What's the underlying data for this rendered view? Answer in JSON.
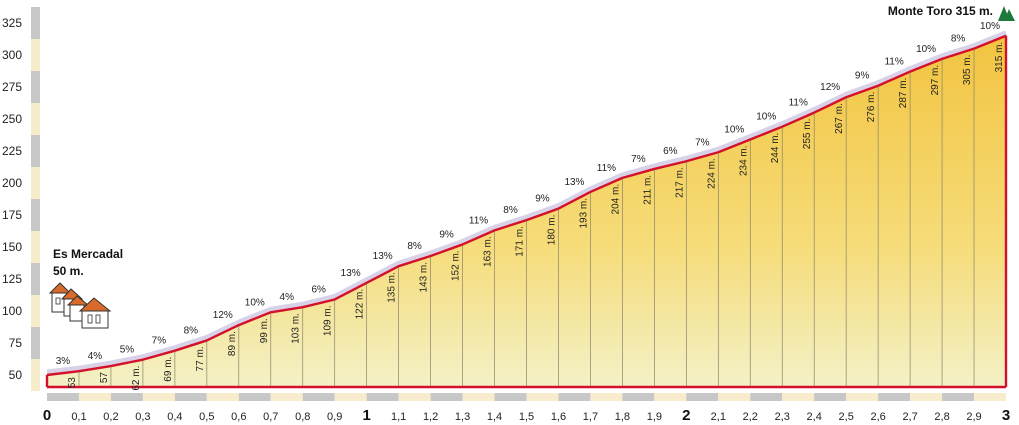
{
  "chart_data": {
    "type": "area",
    "y_ticks": [
      "50",
      "75",
      "100",
      "125",
      "150",
      "175",
      "200",
      "225",
      "250",
      "275",
      "300",
      "325"
    ],
    "x_ticks": [
      "0",
      "0,1",
      "0,2",
      "0,3",
      "0,4",
      "0,5",
      "0,6",
      "0,7",
      "0,8",
      "0,9",
      "1",
      "1,1",
      "1,2",
      "1,3",
      "1,4",
      "1,5",
      "1,6",
      "1,7",
      "1,8",
      "1,9",
      "2",
      "2,1",
      "2,2",
      "2,3",
      "2,4",
      "2,5",
      "2,6",
      "2,7",
      "2,8",
      "2,9",
      "3"
    ],
    "x_major": [
      "0",
      "1",
      "2",
      "3"
    ],
    "xlim": [
      0,
      3
    ],
    "ylim": [
      40,
      325
    ],
    "x": [
      0,
      0.1,
      0.2,
      0.3,
      0.4,
      0.5,
      0.6,
      0.7,
      0.8,
      0.9,
      1.0,
      1.1,
      1.2,
      1.3,
      1.4,
      1.5,
      1.6,
      1.7,
      1.8,
      1.9,
      2.0,
      2.1,
      2.2,
      2.3,
      2.4,
      2.5,
      2.6,
      2.7,
      2.8,
      2.9,
      3.0
    ],
    "elevation": [
      50,
      53,
      57,
      62,
      69,
      77,
      89,
      99,
      103,
      109,
      122,
      135,
      143,
      152,
      163,
      171,
      180,
      193,
      204,
      211,
      217,
      224,
      234,
      244,
      255,
      267,
      276,
      287,
      297,
      305,
      315
    ],
    "elevation_labels": [
      "53",
      "57",
      "62 m.",
      "69 m.",
      "77 m.",
      "89 m.",
      "99 m.",
      "103 m.",
      "109 m.",
      "122 m.",
      "135 m.",
      "143 m.",
      "152 m.",
      "163 m.",
      "171 m.",
      "180 m.",
      "193 m.",
      "204 m.",
      "211 m.",
      "217 m.",
      "224 m.",
      "234 m.",
      "244 m.",
      "255 m.",
      "267 m.",
      "276 m.",
      "287 m.",
      "297 m.",
      "305 m.",
      "315 m."
    ],
    "gradients": [
      "3%",
      "4%",
      "5%",
      "7%",
      "8%",
      "12%",
      "10%",
      "4%",
      "6%",
      "13%",
      "13%",
      "8%",
      "9%",
      "11%",
      "8%",
      "9%",
      "13%",
      "11%",
      "7%",
      "6%",
      "7%",
      "10%",
      "10%",
      "11%",
      "12%",
      "9%",
      "11%",
      "10%",
      "8%",
      "10%"
    ],
    "start": {
      "name": "Es Mercadal",
      "elevation": "50 m."
    },
    "summit": {
      "label": "Monte Toro 315 m."
    },
    "colors": {
      "profile_line": "#d4102a",
      "fill_top": "#f4c64a",
      "fill_bottom": "#f4f2c8",
      "axis_band_light": "#f7eccb",
      "axis_band_dark": "#c7c7c7",
      "summit_icon": "#1e7a3c",
      "house_roof": "#d86a2a"
    }
  }
}
